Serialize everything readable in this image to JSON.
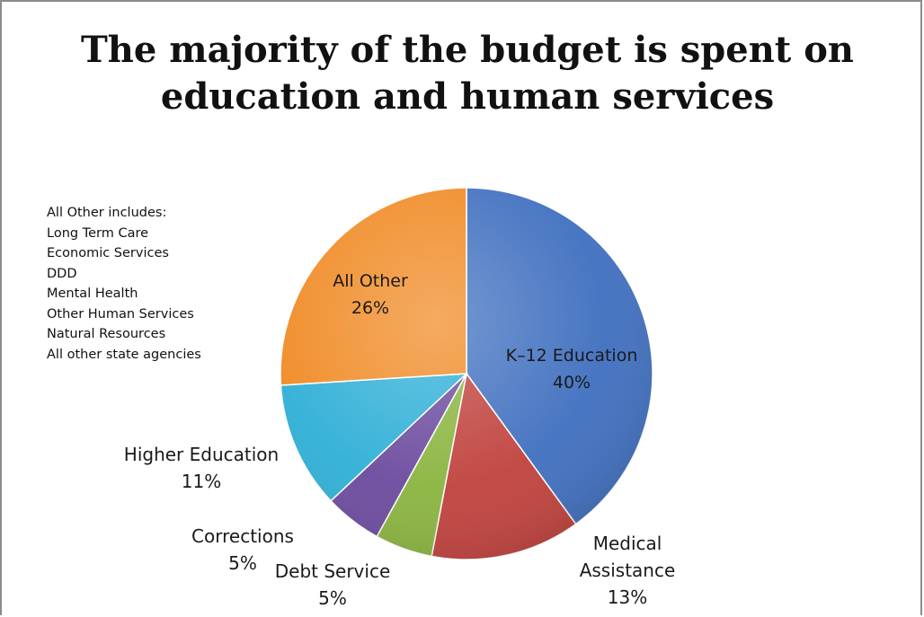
{
  "chart_data": {
    "type": "pie",
    "title": "The majority of the budget is spent on education and human services",
    "slices": [
      {
        "label": "K–12 Education",
        "value": 40,
        "pct_label": "40%",
        "color": "#3f6fbf"
      },
      {
        "label": "Medical Assistance",
        "value": 13,
        "pct_label": "13%",
        "color": "#c0413c"
      },
      {
        "label": "Debt Service",
        "value": 5,
        "pct_label": "5%",
        "color": "#8ab43f"
      },
      {
        "label": "Corrections",
        "value": 5,
        "pct_label": "5%",
        "color": "#6b4a9e"
      },
      {
        "label": "Higher Education",
        "value": 11,
        "pct_label": "11%",
        "color": "#2eafd6"
      },
      {
        "label": "All Other",
        "value": 26,
        "pct_label": "26%",
        "color": "#f08a24"
      }
    ],
    "start_angle_deg": 0,
    "direction": "clockwise"
  },
  "note": {
    "lines": [
      "All Other includes:",
      "Long Term Care",
      "Economic Services",
      "DDD",
      "Mental Health",
      "Other Human Services",
      "Natural Resources",
      "All other state agencies"
    ]
  }
}
